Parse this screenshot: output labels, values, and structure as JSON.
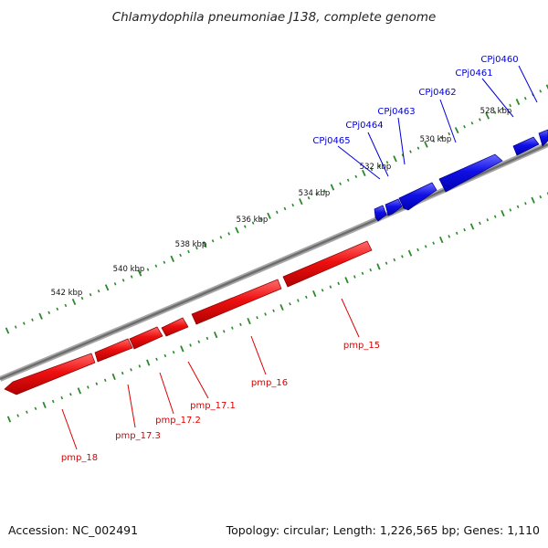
{
  "title": "Chlamydophila pneumoniae J138, complete genome",
  "footer": {
    "accession": "Accession: NC_002491",
    "summary": "Topology: circular; Length: 1,226,565 bp; Genes: 1,110"
  },
  "colors": {
    "forward": "#0000dd",
    "reverse": "#dd0000",
    "backbone": "#808080",
    "ticks": "#2a8a2a"
  },
  "ticks": [
    "542 kbp",
    "540 kbp",
    "538 kbp",
    "536 kbp",
    "534 kbp",
    "532 kbp",
    "530 kbp",
    "528 kbp"
  ],
  "forward_genes": [
    "CPj0465",
    "CPj0464",
    "CPj0463",
    "CPj0462",
    "CPj0461",
    "CPj0460"
  ],
  "reverse_genes": [
    "pmp_18",
    "pmp_17.3",
    "pmp_17.2",
    "pmp_17.1",
    "pmp_16",
    "pmp_15"
  ]
}
